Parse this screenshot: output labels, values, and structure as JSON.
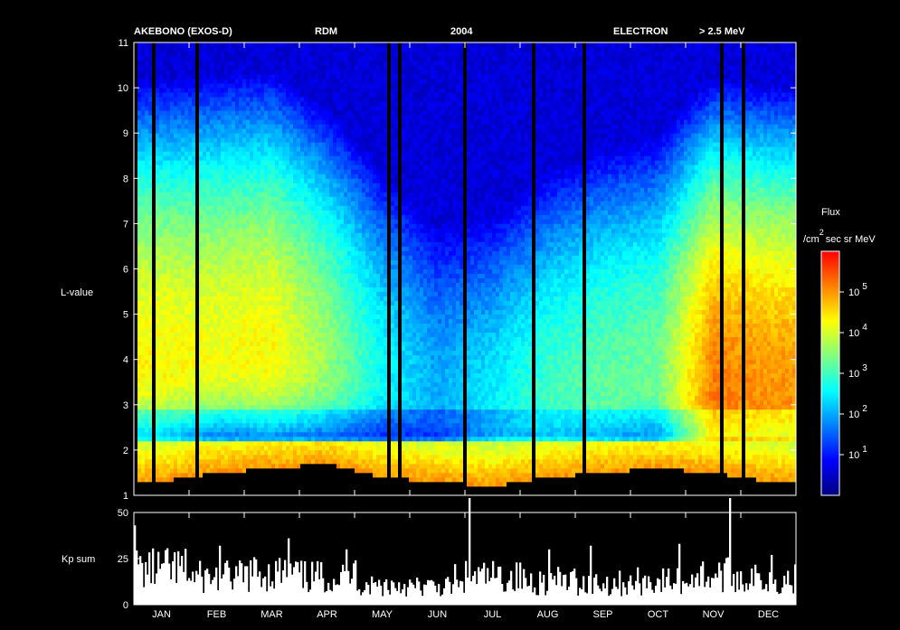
{
  "chart_data": [
    {
      "type": "heatmap",
      "header": [
        "AKEBONO (EXOS-D)",
        "RDM",
        "2004",
        "ELECTRON",
        "> 2.5 MeV"
      ],
      "ylabel": "L-value",
      "ylim": [
        1,
        11
      ],
      "yticks": [
        "1",
        "2",
        "3",
        "4",
        "5",
        "6",
        "7",
        "8",
        "9",
        "10",
        "11"
      ],
      "x_categories": [
        "JAN",
        "FEB",
        "MAR",
        "APR",
        "MAY",
        "JUN",
        "JUL",
        "AUG",
        "SEP",
        "OCT",
        "NOV",
        "DEC"
      ],
      "colorbar": {
        "title": "Flux",
        "units": "/cm",
        "units_exp": "2",
        "units_rest": "sec sr MeV",
        "scale": "log",
        "range": [
          1,
          1000000
        ],
        "tick_base": "10",
        "ticks": [
          "1",
          "2",
          "3",
          "4",
          "5"
        ],
        "colors": [
          "#00007f",
          "#0000ff",
          "#0080ff",
          "#00ffff",
          "#80ff80",
          "#ffff00",
          "#ff8000",
          "#ff0000"
        ]
      },
      "monthly_profile": [
        {
          "month": "JAN",
          "peak_L": 3.8,
          "peak_log_flux": 4.3,
          "floor_L": 1.3
        },
        {
          "month": "FEB",
          "peak_L": 4.0,
          "peak_log_flux": 4.2,
          "floor_L": 1.5
        },
        {
          "month": "MAR",
          "peak_L": 4.0,
          "peak_log_flux": 4.3,
          "floor_L": 1.6
        },
        {
          "month": "APR",
          "peak_L": 3.8,
          "peak_log_flux": 3.6,
          "floor_L": 1.7
        },
        {
          "month": "MAY",
          "peak_L": 3.5,
          "peak_log_flux": 2.6,
          "floor_L": 1.4
        },
        {
          "month": "JUN",
          "peak_L": 3.0,
          "peak_log_flux": 2.0,
          "floor_L": 1.3
        },
        {
          "month": "JUL",
          "peak_L": 2.6,
          "peak_log_flux": 2.5,
          "floor_L": 1.2
        },
        {
          "month": "AUG",
          "peak_L": 3.0,
          "peak_log_flux": 3.0,
          "floor_L": 1.4
        },
        {
          "month": "SEP",
          "peak_L": 3.3,
          "peak_log_flux": 3.2,
          "floor_L": 1.5
        },
        {
          "month": "OCT",
          "peak_L": 3.5,
          "peak_log_flux": 3.3,
          "floor_L": 1.6
        },
        {
          "month": "NOV",
          "peak_L": 3.1,
          "peak_log_flux": 5.2,
          "floor_L": 1.5
        },
        {
          "month": "DEC",
          "peak_L": 3.1,
          "peak_log_flux": 5.0,
          "floor_L": 1.3
        }
      ]
    },
    {
      "type": "bar",
      "ylabel": "Kp sum",
      "ylim": [
        0,
        50
      ],
      "yticks": [
        "0",
        "25",
        "50"
      ],
      "x_categories": [
        "JAN",
        "FEB",
        "MAR",
        "APR",
        "MAY",
        "JUN",
        "JUL",
        "AUG",
        "SEP",
        "OCT",
        "NOV",
        "DEC"
      ],
      "monthly_kp": [
        {
          "month": "JAN",
          "mean": 18,
          "max": 43
        },
        {
          "month": "FEB",
          "mean": 14,
          "max": 32
        },
        {
          "month": "MAR",
          "mean": 16,
          "max": 36
        },
        {
          "month": "APR",
          "mean": 14,
          "max": 30
        },
        {
          "month": "MAY",
          "mean": 10,
          "max": 24
        },
        {
          "month": "JUN",
          "mean": 9,
          "max": 22
        },
        {
          "month": "JUL",
          "mean": 14,
          "max": 60
        },
        {
          "month": "AUG",
          "mean": 12,
          "max": 30
        },
        {
          "month": "SEP",
          "mean": 11,
          "max": 32
        },
        {
          "month": "OCT",
          "mean": 12,
          "max": 33
        },
        {
          "month": "NOV",
          "mean": 15,
          "max": 58
        },
        {
          "month": "DEC",
          "mean": 13,
          "max": 27
        }
      ]
    }
  ]
}
